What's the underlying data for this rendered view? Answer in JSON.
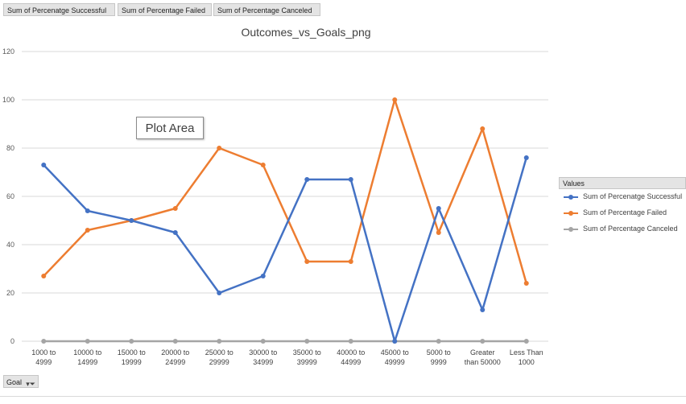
{
  "field_buttons": [
    "Sum of Percenatge Successful",
    "Sum of Percentage Failed",
    "Sum of Percentage Canceled"
  ],
  "tooltip": "Plot Area",
  "legend_header": "Values",
  "filter_button": "Goal",
  "colors": {
    "successful": "#4472c4",
    "failed": "#ed7d31",
    "canceled": "#a5a5a5",
    "grid": "#d9d9d9"
  },
  "chart_data": {
    "type": "line",
    "title": "Outcomes_vs_Goals_png",
    "xlabel": "",
    "ylabel": "",
    "ylim": [
      0,
      120
    ],
    "yticks": [
      0,
      20,
      40,
      60,
      80,
      100,
      120
    ],
    "grid": true,
    "legend_position": "right",
    "categories": [
      [
        "1000 to",
        "4999"
      ],
      [
        "10000 to",
        "14999"
      ],
      [
        "15000 to",
        "19999"
      ],
      [
        "20000 to",
        "24999"
      ],
      [
        "25000 to",
        "29999"
      ],
      [
        "30000 to",
        "34999"
      ],
      [
        "35000 to",
        "39999"
      ],
      [
        "40000 to",
        "44999"
      ],
      [
        "45000 to",
        "49999"
      ],
      [
        "5000 to",
        "9999"
      ],
      [
        "Greater",
        "than 50000"
      ],
      [
        "Less Than",
        "1000"
      ]
    ],
    "series": [
      {
        "name": "Sum of Percenatge Successful",
        "color": "#4472c4",
        "values": [
          73,
          54,
          50,
          45,
          20,
          27,
          67,
          67,
          0,
          55,
          13,
          76
        ]
      },
      {
        "name": "Sum of Percentage Failed",
        "color": "#ed7d31",
        "values": [
          27,
          46,
          50,
          55,
          80,
          73,
          33,
          33,
          100,
          45,
          88,
          24
        ]
      },
      {
        "name": "Sum of Percentage Canceled",
        "color": "#a5a5a5",
        "values": [
          0,
          0,
          0,
          0,
          0,
          0,
          0,
          0,
          0,
          0,
          0,
          0
        ]
      }
    ]
  }
}
